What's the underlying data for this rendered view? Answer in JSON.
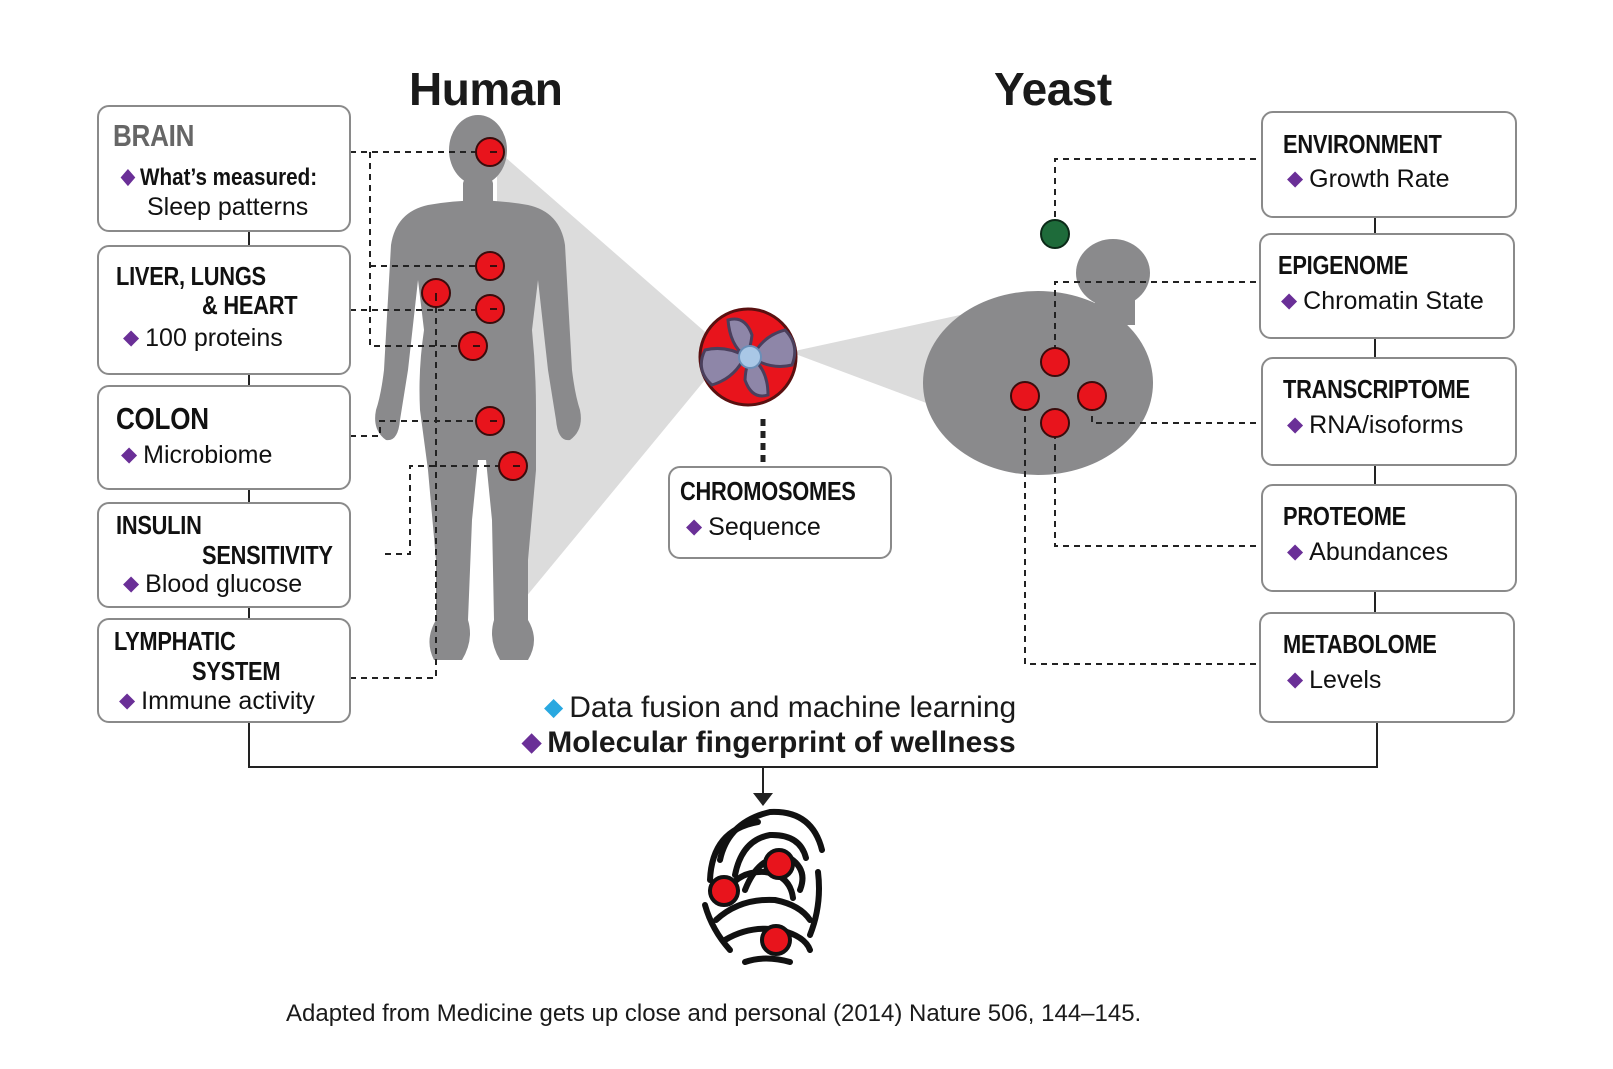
{
  "titles": {
    "human": "Human",
    "yeast": "Yeast"
  },
  "human_boxes": {
    "brain": {
      "heading": "BRAIN",
      "label": "What’s measured:",
      "item": "Sleep patterns"
    },
    "organs": {
      "heading_line1": "LIVER, LUNGS",
      "heading_line2": "& HEART",
      "item": "100 proteins"
    },
    "colon": {
      "heading": "COLON",
      "item": "Microbiome"
    },
    "insulin": {
      "heading_line1": "INSULIN",
      "heading_line2": "SENSITIVITY",
      "item": "Blood glucose"
    },
    "lymphatic": {
      "heading_line1": "LYMPHATIC",
      "heading_line2": "SYSTEM",
      "item": "Immune activity"
    }
  },
  "chromosomes": {
    "heading": "CHROMOSOMES",
    "item": "Sequence"
  },
  "yeast_boxes": {
    "environment": {
      "heading": "ENVIRONMENT",
      "item": "Growth Rate"
    },
    "epigenome": {
      "heading": "EPIGENOME",
      "item": "Chromatin State"
    },
    "transcriptome": {
      "heading": "TRANSCRIPTOME",
      "item": "RNA/isoforms"
    },
    "proteome": {
      "heading": "PROTEOME",
      "item": "Abundances"
    },
    "metabolome": {
      "heading": "METABOLOME",
      "item": "Levels"
    }
  },
  "captions": {
    "fusion": "Data fusion and machine learning",
    "fingerprint": "Molecular fingerprint of wellness"
  },
  "credit": "Adapted from Medicine gets up close and personal (2014) Nature 506, 144–145.",
  "colors": {
    "marker_red": "#e8141c",
    "marker_green": "#1e6b3a",
    "bullet_purple": "#6a2f97",
    "bullet_blue": "#29a8e0",
    "silhouette_gray": "#8a8a8c",
    "cone_gray": "#dcdcdc"
  },
  "icons": {
    "human": "human-silhouette-icon",
    "yeast": "yeast-cell-icon",
    "chromosome": "chromosome-icon",
    "fingerprint": "fingerprint-icon"
  }
}
